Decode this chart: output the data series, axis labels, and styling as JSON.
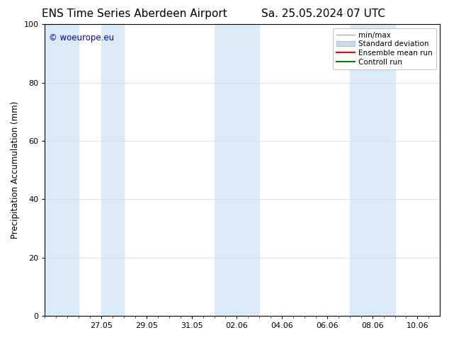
{
  "title": "ENS Time Series Aberdeen Airport",
  "title2": "Sa. 25.05.2024 07 UTC",
  "ylabel": "Precipitation Accumulation (mm)",
  "watermark": "© woeurope.eu",
  "watermark_color": "#0000cc",
  "ylim": [
    0,
    100
  ],
  "yticks": [
    0,
    20,
    40,
    60,
    80,
    100
  ],
  "x_tick_labels": [
    "27.05",
    "29.05",
    "31.05",
    "02.06",
    "04.06",
    "06.06",
    "08.06",
    "10.06"
  ],
  "x_tick_positions": [
    2,
    4,
    6,
    8,
    10,
    12,
    14,
    16
  ],
  "x_min": -0.5,
  "x_max": 17.0,
  "shaded_bands": [
    [
      -0.5,
      1.0
    ],
    [
      2.0,
      3.0
    ],
    [
      7.0,
      9.0
    ],
    [
      13.0,
      15.0
    ]
  ],
  "shade_color": "#daeaf6",
  "legend_entries": [
    {
      "label": "min/max",
      "color": "#aaaaaa"
    },
    {
      "label": "Standard deviation",
      "color": "#c5dced"
    },
    {
      "label": "Ensemble mean run",
      "color": "#ff0000"
    },
    {
      "label": "Controll run",
      "color": "#008000"
    }
  ],
  "background_color": "#ffffff",
  "grid_color": "#dddddd",
  "title_fontsize": 11,
  "label_fontsize": 8.5,
  "tick_fontsize": 8,
  "legend_fontsize": 7.5
}
